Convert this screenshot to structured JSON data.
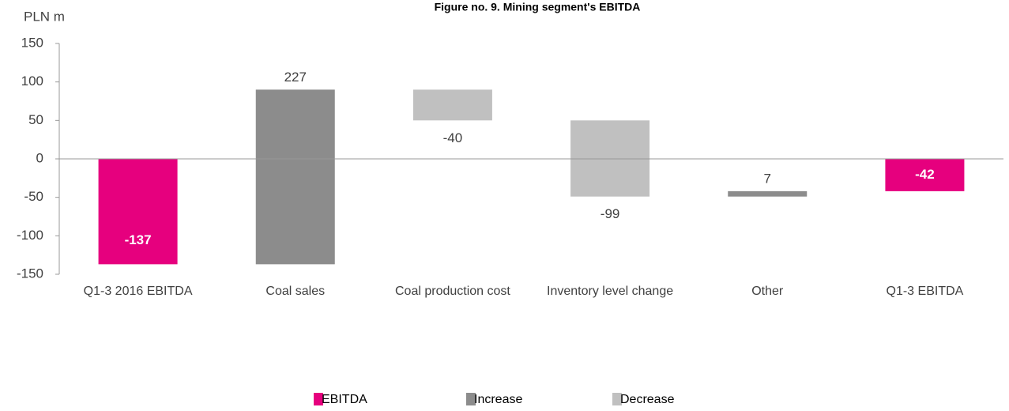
{
  "chart_data": {
    "type": "waterfall",
    "title": "Figure no. 9. Mining segment's EBITDA",
    "y_label": "PLN m",
    "categories": [
      "Q1-3 2016 EBITDA",
      "Coal sales",
      "Coal production cost",
      "Inventory level change",
      "Other",
      "Q1-3 EBITDA"
    ],
    "series": [
      {
        "name": "EBITDA",
        "color": "#e6007e",
        "total": true,
        "values": [
          -137,
          null,
          null,
          null,
          null,
          -42
        ]
      },
      {
        "name": "Increase",
        "color": "#8c8c8c",
        "values": [
          null,
          227,
          null,
          null,
          7,
          null
        ]
      },
      {
        "name": "Decrease",
        "color": "#c0c0c0",
        "values": [
          null,
          null,
          -40,
          -99,
          null,
          null
        ]
      }
    ],
    "ylim": [
      -150,
      150
    ],
    "yticks": [
      -150,
      -100,
      -50,
      0,
      50,
      100,
      150
    ]
  }
}
